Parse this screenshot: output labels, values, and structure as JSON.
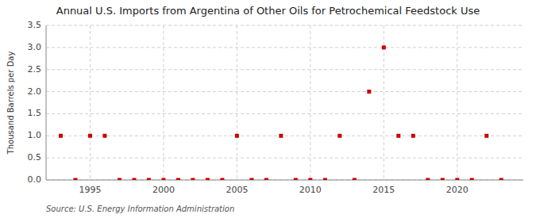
{
  "chart_data": {
    "type": "scatter",
    "title": "Annual U.S. Imports from Argentina of Other Oils for Petrochemical Feedstock Use",
    "ylabel": "Thousand Barrels per Day",
    "annotations": [
      "Source: U.S. Energy Information Administration"
    ],
    "x": [
      1993,
      1994,
      1995,
      1996,
      1997,
      1998,
      1999,
      2000,
      2001,
      2002,
      2003,
      2004,
      2005,
      2006,
      2007,
      2008,
      2009,
      2010,
      2011,
      2012,
      2013,
      2014,
      2015,
      2016,
      2017,
      2018,
      2019,
      2020,
      2021,
      2022,
      2023
    ],
    "values": [
      1.0,
      0.0,
      1.0,
      1.0,
      0.0,
      0.0,
      0.0,
      0.0,
      0.0,
      0.0,
      0.0,
      0.0,
      1.0,
      0.0,
      0.0,
      1.0,
      0.0,
      0.0,
      0.0,
      1.0,
      0.0,
      2.0,
      3.0,
      1.0,
      1.0,
      0.0,
      0.0,
      0.0,
      0.0,
      1.0,
      0.0
    ],
    "color": "#cc0000",
    "marker": "square",
    "xlim": [
      1992,
      2024.5
    ],
    "ylim": [
      0.0,
      3.5
    ],
    "xticks": [
      1995,
      2000,
      2005,
      2010,
      2015,
      2020
    ],
    "yticks": [
      {
        "value": 0.0,
        "label": "0.0"
      },
      0.5,
      {
        "value": 1.0,
        "label": "1.0"
      },
      1.5,
      {
        "value": 2.0,
        "label": "2.0"
      },
      2.5,
      {
        "value": 3.0,
        "label": "3.0"
      },
      3.5
    ],
    "grid": true
  }
}
